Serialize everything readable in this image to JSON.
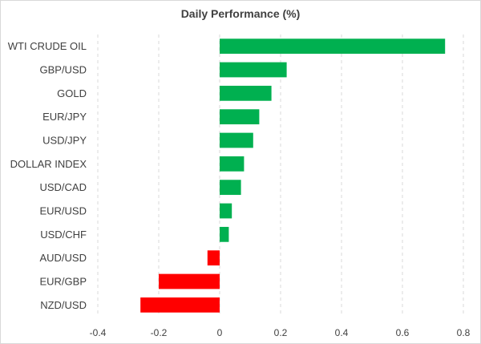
{
  "chart_data": {
    "type": "bar",
    "orientation": "horizontal",
    "title": "Daily Performance (%)",
    "xlabel": "",
    "ylabel": "",
    "categories": [
      "WTI CRUDE OIL",
      "GBP/USD",
      "GOLD",
      "EUR/JPY",
      "USD/JPY",
      "DOLLAR INDEX",
      "USD/CAD",
      "EUR/USD",
      "USD/CHF",
      "AUD/USD",
      "EUR/GBP",
      "NZD/USD"
    ],
    "values": [
      0.74,
      0.22,
      0.17,
      0.13,
      0.11,
      0.08,
      0.07,
      0.04,
      0.03,
      -0.04,
      -0.2,
      -0.26
    ],
    "xlim": [
      -0.4,
      0.8
    ],
    "xticks": [
      -0.4,
      -0.2,
      0,
      0.2,
      0.4,
      0.6,
      0.8
    ],
    "xtick_labels": [
      "-0.4",
      "-0.2",
      "0",
      "0.2",
      "0.4",
      "0.6",
      "0.8"
    ],
    "grid": "vertical dashed",
    "legend": "none",
    "colors": {
      "positive": "#00b050",
      "negative": "#ff0000"
    }
  }
}
